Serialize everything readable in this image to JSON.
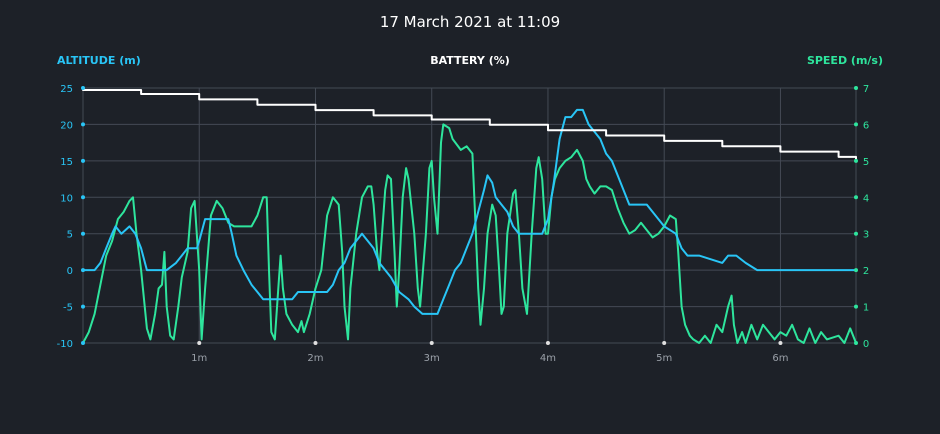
{
  "chart_data": {
    "type": "line",
    "title": "17 March 2021 at 11:09",
    "axes": {
      "left": {
        "label": "ALTITUDE (m)",
        "color": "#29c5f6",
        "range": [
          -10,
          25
        ],
        "ticks": [
          "25",
          "20",
          "15",
          "10",
          "5",
          "0",
          "-5",
          "-10"
        ]
      },
      "center": {
        "label": "BATTERY (%)",
        "color": "#ffffff"
      },
      "right": {
        "label": "SPEED (m/s)",
        "color": "#2ee59d",
        "range": [
          0,
          7
        ],
        "ticks": [
          "7",
          "6",
          "5",
          "4",
          "3",
          "2",
          "1",
          "0"
        ]
      },
      "x": {
        "unit": "minutes",
        "range": [
          0,
          6.65
        ],
        "ticks": [
          "1m",
          "2m",
          "3m",
          "4m",
          "5m",
          "6m"
        ]
      }
    },
    "grid": true,
    "series": [
      {
        "name": "ALTITUDE (m)",
        "axis": "left",
        "color": "#29c5f6",
        "points": [
          [
            0,
            0
          ],
          [
            0.1,
            0
          ],
          [
            0.15,
            1
          ],
          [
            0.2,
            3
          ],
          [
            0.25,
            5
          ],
          [
            0.28,
            6
          ],
          [
            0.33,
            5
          ],
          [
            0.4,
            6
          ],
          [
            0.45,
            5
          ],
          [
            0.5,
            3
          ],
          [
            0.55,
            0
          ],
          [
            0.65,
            0
          ],
          [
            0.72,
            0
          ],
          [
            0.8,
            1
          ],
          [
            0.85,
            2
          ],
          [
            0.9,
            3
          ],
          [
            0.98,
            3
          ],
          [
            1.0,
            4
          ],
          [
            1.05,
            7
          ],
          [
            1.15,
            7
          ],
          [
            1.25,
            7
          ],
          [
            1.28,
            5
          ],
          [
            1.32,
            2
          ],
          [
            1.38,
            0
          ],
          [
            1.45,
            -2
          ],
          [
            1.5,
            -3
          ],
          [
            1.55,
            -4
          ],
          [
            1.65,
            -4
          ],
          [
            1.8,
            -4
          ],
          [
            1.85,
            -3
          ],
          [
            1.95,
            -3
          ],
          [
            2.1,
            -3
          ],
          [
            2.15,
            -2
          ],
          [
            2.2,
            0
          ],
          [
            2.25,
            1
          ],
          [
            2.3,
            3
          ],
          [
            2.35,
            4
          ],
          [
            2.4,
            5
          ],
          [
            2.45,
            4
          ],
          [
            2.5,
            3
          ],
          [
            2.55,
            1
          ],
          [
            2.6,
            0
          ],
          [
            2.65,
            -1
          ],
          [
            2.72,
            -3
          ],
          [
            2.8,
            -4
          ],
          [
            2.85,
            -5
          ],
          [
            2.92,
            -6
          ],
          [
            3.05,
            -6
          ],
          [
            3.1,
            -4
          ],
          [
            3.15,
            -2
          ],
          [
            3.2,
            0
          ],
          [
            3.25,
            1
          ],
          [
            3.3,
            3
          ],
          [
            3.35,
            5
          ],
          [
            3.4,
            8
          ],
          [
            3.45,
            11
          ],
          [
            3.48,
            13
          ],
          [
            3.52,
            12
          ],
          [
            3.55,
            10
          ],
          [
            3.6,
            9
          ],
          [
            3.65,
            8
          ],
          [
            3.7,
            6
          ],
          [
            3.75,
            5
          ],
          [
            3.85,
            5
          ],
          [
            3.95,
            5
          ],
          [
            4.0,
            7
          ],
          [
            4.05,
            12
          ],
          [
            4.1,
            18
          ],
          [
            4.15,
            21
          ],
          [
            4.2,
            21
          ],
          [
            4.25,
            22
          ],
          [
            4.3,
            22
          ],
          [
            4.35,
            20
          ],
          [
            4.4,
            19
          ],
          [
            4.45,
            18
          ],
          [
            4.5,
            16
          ],
          [
            4.55,
            15
          ],
          [
            4.6,
            13
          ],
          [
            4.65,
            11
          ],
          [
            4.7,
            9
          ],
          [
            4.75,
            9
          ],
          [
            4.85,
            9
          ],
          [
            4.9,
            8
          ],
          [
            4.95,
            7
          ],
          [
            5.0,
            6
          ],
          [
            5.1,
            5
          ],
          [
            5.15,
            3
          ],
          [
            5.2,
            2
          ],
          [
            5.3,
            2
          ],
          [
            5.5,
            1
          ],
          [
            5.55,
            2
          ],
          [
            5.62,
            2
          ],
          [
            5.7,
            1
          ],
          [
            5.8,
            0
          ],
          [
            6.0,
            0
          ],
          [
            6.3,
            0
          ],
          [
            6.65,
            0
          ]
        ]
      },
      {
        "name": "SPEED (m/s)",
        "axis": "right",
        "color": "#2ee59d",
        "points": [
          [
            0,
            0
          ],
          [
            0.05,
            0.3
          ],
          [
            0.1,
            0.8
          ],
          [
            0.15,
            1.6
          ],
          [
            0.2,
            2.4
          ],
          [
            0.25,
            2.8
          ],
          [
            0.3,
            3.4
          ],
          [
            0.35,
            3.6
          ],
          [
            0.4,
            3.9
          ],
          [
            0.43,
            4.0
          ],
          [
            0.46,
            3.0
          ],
          [
            0.5,
            2.0
          ],
          [
            0.55,
            0.4
          ],
          [
            0.58,
            0.1
          ],
          [
            0.62,
            0.8
          ],
          [
            0.65,
            1.5
          ],
          [
            0.68,
            1.6
          ],
          [
            0.7,
            2.5
          ],
          [
            0.72,
            1.0
          ],
          [
            0.75,
            0.2
          ],
          [
            0.78,
            0.1
          ],
          [
            0.82,
            1.0
          ],
          [
            0.85,
            1.8
          ],
          [
            0.9,
            2.5
          ],
          [
            0.93,
            3.7
          ],
          [
            0.96,
            3.9
          ],
          [
            1.0,
            2.0
          ],
          [
            1.02,
            0.1
          ],
          [
            1.05,
            1.5
          ],
          [
            1.1,
            3.5
          ],
          [
            1.15,
            3.9
          ],
          [
            1.2,
            3.7
          ],
          [
            1.25,
            3.3
          ],
          [
            1.3,
            3.2
          ],
          [
            1.35,
            3.2
          ],
          [
            1.45,
            3.2
          ],
          [
            1.5,
            3.5
          ],
          [
            1.55,
            4.0
          ],
          [
            1.58,
            4.0
          ],
          [
            1.6,
            2.0
          ],
          [
            1.62,
            0.3
          ],
          [
            1.65,
            0.1
          ],
          [
            1.68,
            1.5
          ],
          [
            1.7,
            2.4
          ],
          [
            1.72,
            1.5
          ],
          [
            1.75,
            0.8
          ],
          [
            1.8,
            0.5
          ],
          [
            1.85,
            0.3
          ],
          [
            1.88,
            0.6
          ],
          [
            1.9,
            0.3
          ],
          [
            1.95,
            0.8
          ],
          [
            2.0,
            1.5
          ],
          [
            2.05,
            2.0
          ],
          [
            2.1,
            3.5
          ],
          [
            2.15,
            4.0
          ],
          [
            2.2,
            3.8
          ],
          [
            2.23,
            2.5
          ],
          [
            2.25,
            1.0
          ],
          [
            2.28,
            0.1
          ],
          [
            2.3,
            1.5
          ],
          [
            2.35,
            3.0
          ],
          [
            2.4,
            4.0
          ],
          [
            2.45,
            4.3
          ],
          [
            2.48,
            4.3
          ],
          [
            2.5,
            3.8
          ],
          [
            2.53,
            2.5
          ],
          [
            2.55,
            2.0
          ],
          [
            2.6,
            4.2
          ],
          [
            2.62,
            4.6
          ],
          [
            2.65,
            4.5
          ],
          [
            2.68,
            2.5
          ],
          [
            2.7,
            1.0
          ],
          [
            2.72,
            2.0
          ],
          [
            2.75,
            4.0
          ],
          [
            2.78,
            4.8
          ],
          [
            2.8,
            4.5
          ],
          [
            2.85,
            3.0
          ],
          [
            2.88,
            1.5
          ],
          [
            2.9,
            1.0
          ],
          [
            2.95,
            3.0
          ],
          [
            2.98,
            4.8
          ],
          [
            3.0,
            5.0
          ],
          [
            3.02,
            4.0
          ],
          [
            3.05,
            3.0
          ],
          [
            3.08,
            5.5
          ],
          [
            3.1,
            6.0
          ],
          [
            3.15,
            5.9
          ],
          [
            3.18,
            5.6
          ],
          [
            3.25,
            5.3
          ],
          [
            3.3,
            5.4
          ],
          [
            3.35,
            5.2
          ],
          [
            3.38,
            3.0
          ],
          [
            3.4,
            1.5
          ],
          [
            3.42,
            0.5
          ],
          [
            3.45,
            1.5
          ],
          [
            3.48,
            3.0
          ],
          [
            3.52,
            3.8
          ],
          [
            3.55,
            3.5
          ],
          [
            3.58,
            2.0
          ],
          [
            3.6,
            0.8
          ],
          [
            3.62,
            1.0
          ],
          [
            3.65,
            3.0
          ],
          [
            3.7,
            4.1
          ],
          [
            3.72,
            4.2
          ],
          [
            3.75,
            3.0
          ],
          [
            3.78,
            1.5
          ],
          [
            3.82,
            0.8
          ],
          [
            3.86,
            3.0
          ],
          [
            3.9,
            4.8
          ],
          [
            3.92,
            5.1
          ],
          [
            3.95,
            4.5
          ],
          [
            3.98,
            3.0
          ],
          [
            4.0,
            3.0
          ],
          [
            4.03,
            4.0
          ],
          [
            4.06,
            4.5
          ],
          [
            4.1,
            4.8
          ],
          [
            4.15,
            5.0
          ],
          [
            4.2,
            5.1
          ],
          [
            4.25,
            5.3
          ],
          [
            4.3,
            5.0
          ],
          [
            4.33,
            4.5
          ],
          [
            4.36,
            4.3
          ],
          [
            4.4,
            4.1
          ],
          [
            4.45,
            4.3
          ],
          [
            4.5,
            4.3
          ],
          [
            4.55,
            4.2
          ],
          [
            4.6,
            3.7
          ],
          [
            4.65,
            3.3
          ],
          [
            4.7,
            3.0
          ],
          [
            4.75,
            3.1
          ],
          [
            4.8,
            3.3
          ],
          [
            4.85,
            3.1
          ],
          [
            4.9,
            2.9
          ],
          [
            4.95,
            3.0
          ],
          [
            5.0,
            3.2
          ],
          [
            5.05,
            3.5
          ],
          [
            5.1,
            3.4
          ],
          [
            5.12,
            2.5
          ],
          [
            5.15,
            1.0
          ],
          [
            5.18,
            0.5
          ],
          [
            5.22,
            0.2
          ],
          [
            5.25,
            0.1
          ],
          [
            5.3,
            0.0
          ],
          [
            5.35,
            0.2
          ],
          [
            5.4,
            0.0
          ],
          [
            5.45,
            0.5
          ],
          [
            5.5,
            0.3
          ],
          [
            5.55,
            1.0
          ],
          [
            5.58,
            1.3
          ],
          [
            5.6,
            0.5
          ],
          [
            5.63,
            0.0
          ],
          [
            5.67,
            0.3
          ],
          [
            5.7,
            0.0
          ],
          [
            5.75,
            0.5
          ],
          [
            5.8,
            0.1
          ],
          [
            5.85,
            0.5
          ],
          [
            5.9,
            0.3
          ],
          [
            5.95,
            0.1
          ],
          [
            6.0,
            0.3
          ],
          [
            6.05,
            0.2
          ],
          [
            6.1,
            0.5
          ],
          [
            6.15,
            0.1
          ],
          [
            6.2,
            0.0
          ],
          [
            6.25,
            0.4
          ],
          [
            6.3,
            0.0
          ],
          [
            6.35,
            0.3
          ],
          [
            6.4,
            0.1
          ],
          [
            6.5,
            0.2
          ],
          [
            6.55,
            0.0
          ],
          [
            6.6,
            0.4
          ],
          [
            6.65,
            0.0
          ]
        ]
      },
      {
        "name": "BATTERY (%)",
        "axis": "center",
        "color": "#ffffff",
        "y_range": [
          0,
          100
        ],
        "points": [
          [
            0,
            100
          ],
          [
            0.5,
            98.5
          ],
          [
            1.0,
            96.5
          ],
          [
            1.5,
            94.5
          ],
          [
            2.0,
            92.5
          ],
          [
            2.5,
            90.5
          ],
          [
            3.0,
            89
          ],
          [
            3.5,
            87
          ],
          [
            4.0,
            85
          ],
          [
            4.5,
            83
          ],
          [
            5.0,
            81
          ],
          [
            5.5,
            79
          ],
          [
            6.0,
            77
          ],
          [
            6.5,
            75
          ],
          [
            6.65,
            74
          ]
        ]
      }
    ]
  }
}
